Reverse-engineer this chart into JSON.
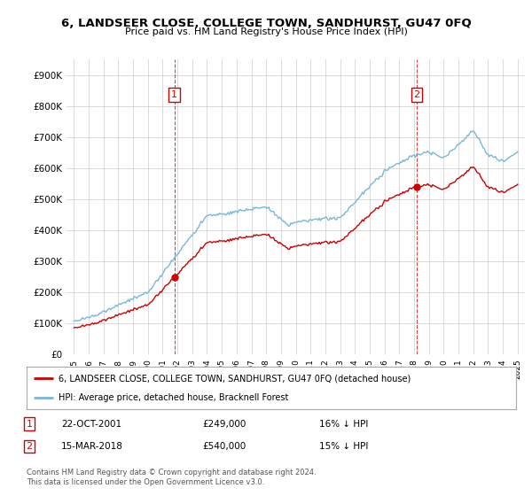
{
  "title": "6, LANDSEER CLOSE, COLLEGE TOWN, SANDHURST, GU47 0FQ",
  "subtitle": "Price paid vs. HM Land Registry's House Price Index (HPI)",
  "ylim": [
    0,
    950000
  ],
  "yticks": [
    0,
    100000,
    200000,
    300000,
    400000,
    500000,
    600000,
    700000,
    800000,
    900000
  ],
  "ytick_labels": [
    "£0",
    "£100K",
    "£200K",
    "£300K",
    "£400K",
    "£500K",
    "£600K",
    "£700K",
    "£800K",
    "£900K"
  ],
  "hpi_color": "#7ab8d9",
  "price_color": "#cc0000",
  "sale1_year": 2001.79,
  "sale1_price": 249000,
  "sale1_date": "22-OCT-2001",
  "sale1_label": "16% ↓ HPI",
  "sale2_year": 2018.17,
  "sale2_price": 540000,
  "sale2_date": "15-MAR-2018",
  "sale2_label": "15% ↓ HPI",
  "legend_label1": "6, LANDSEER CLOSE, COLLEGE TOWN, SANDHURST, GU47 0FQ (detached house)",
  "legend_label2": "HPI: Average price, detached house, Bracknell Forest",
  "footer": "Contains HM Land Registry data © Crown copyright and database right 2024.\nThis data is licensed under the Open Government Licence v3.0.",
  "background_color": "#ffffff",
  "grid_color": "#cccccc",
  "xlim_left": 1994.5,
  "xlim_right": 2025.5
}
